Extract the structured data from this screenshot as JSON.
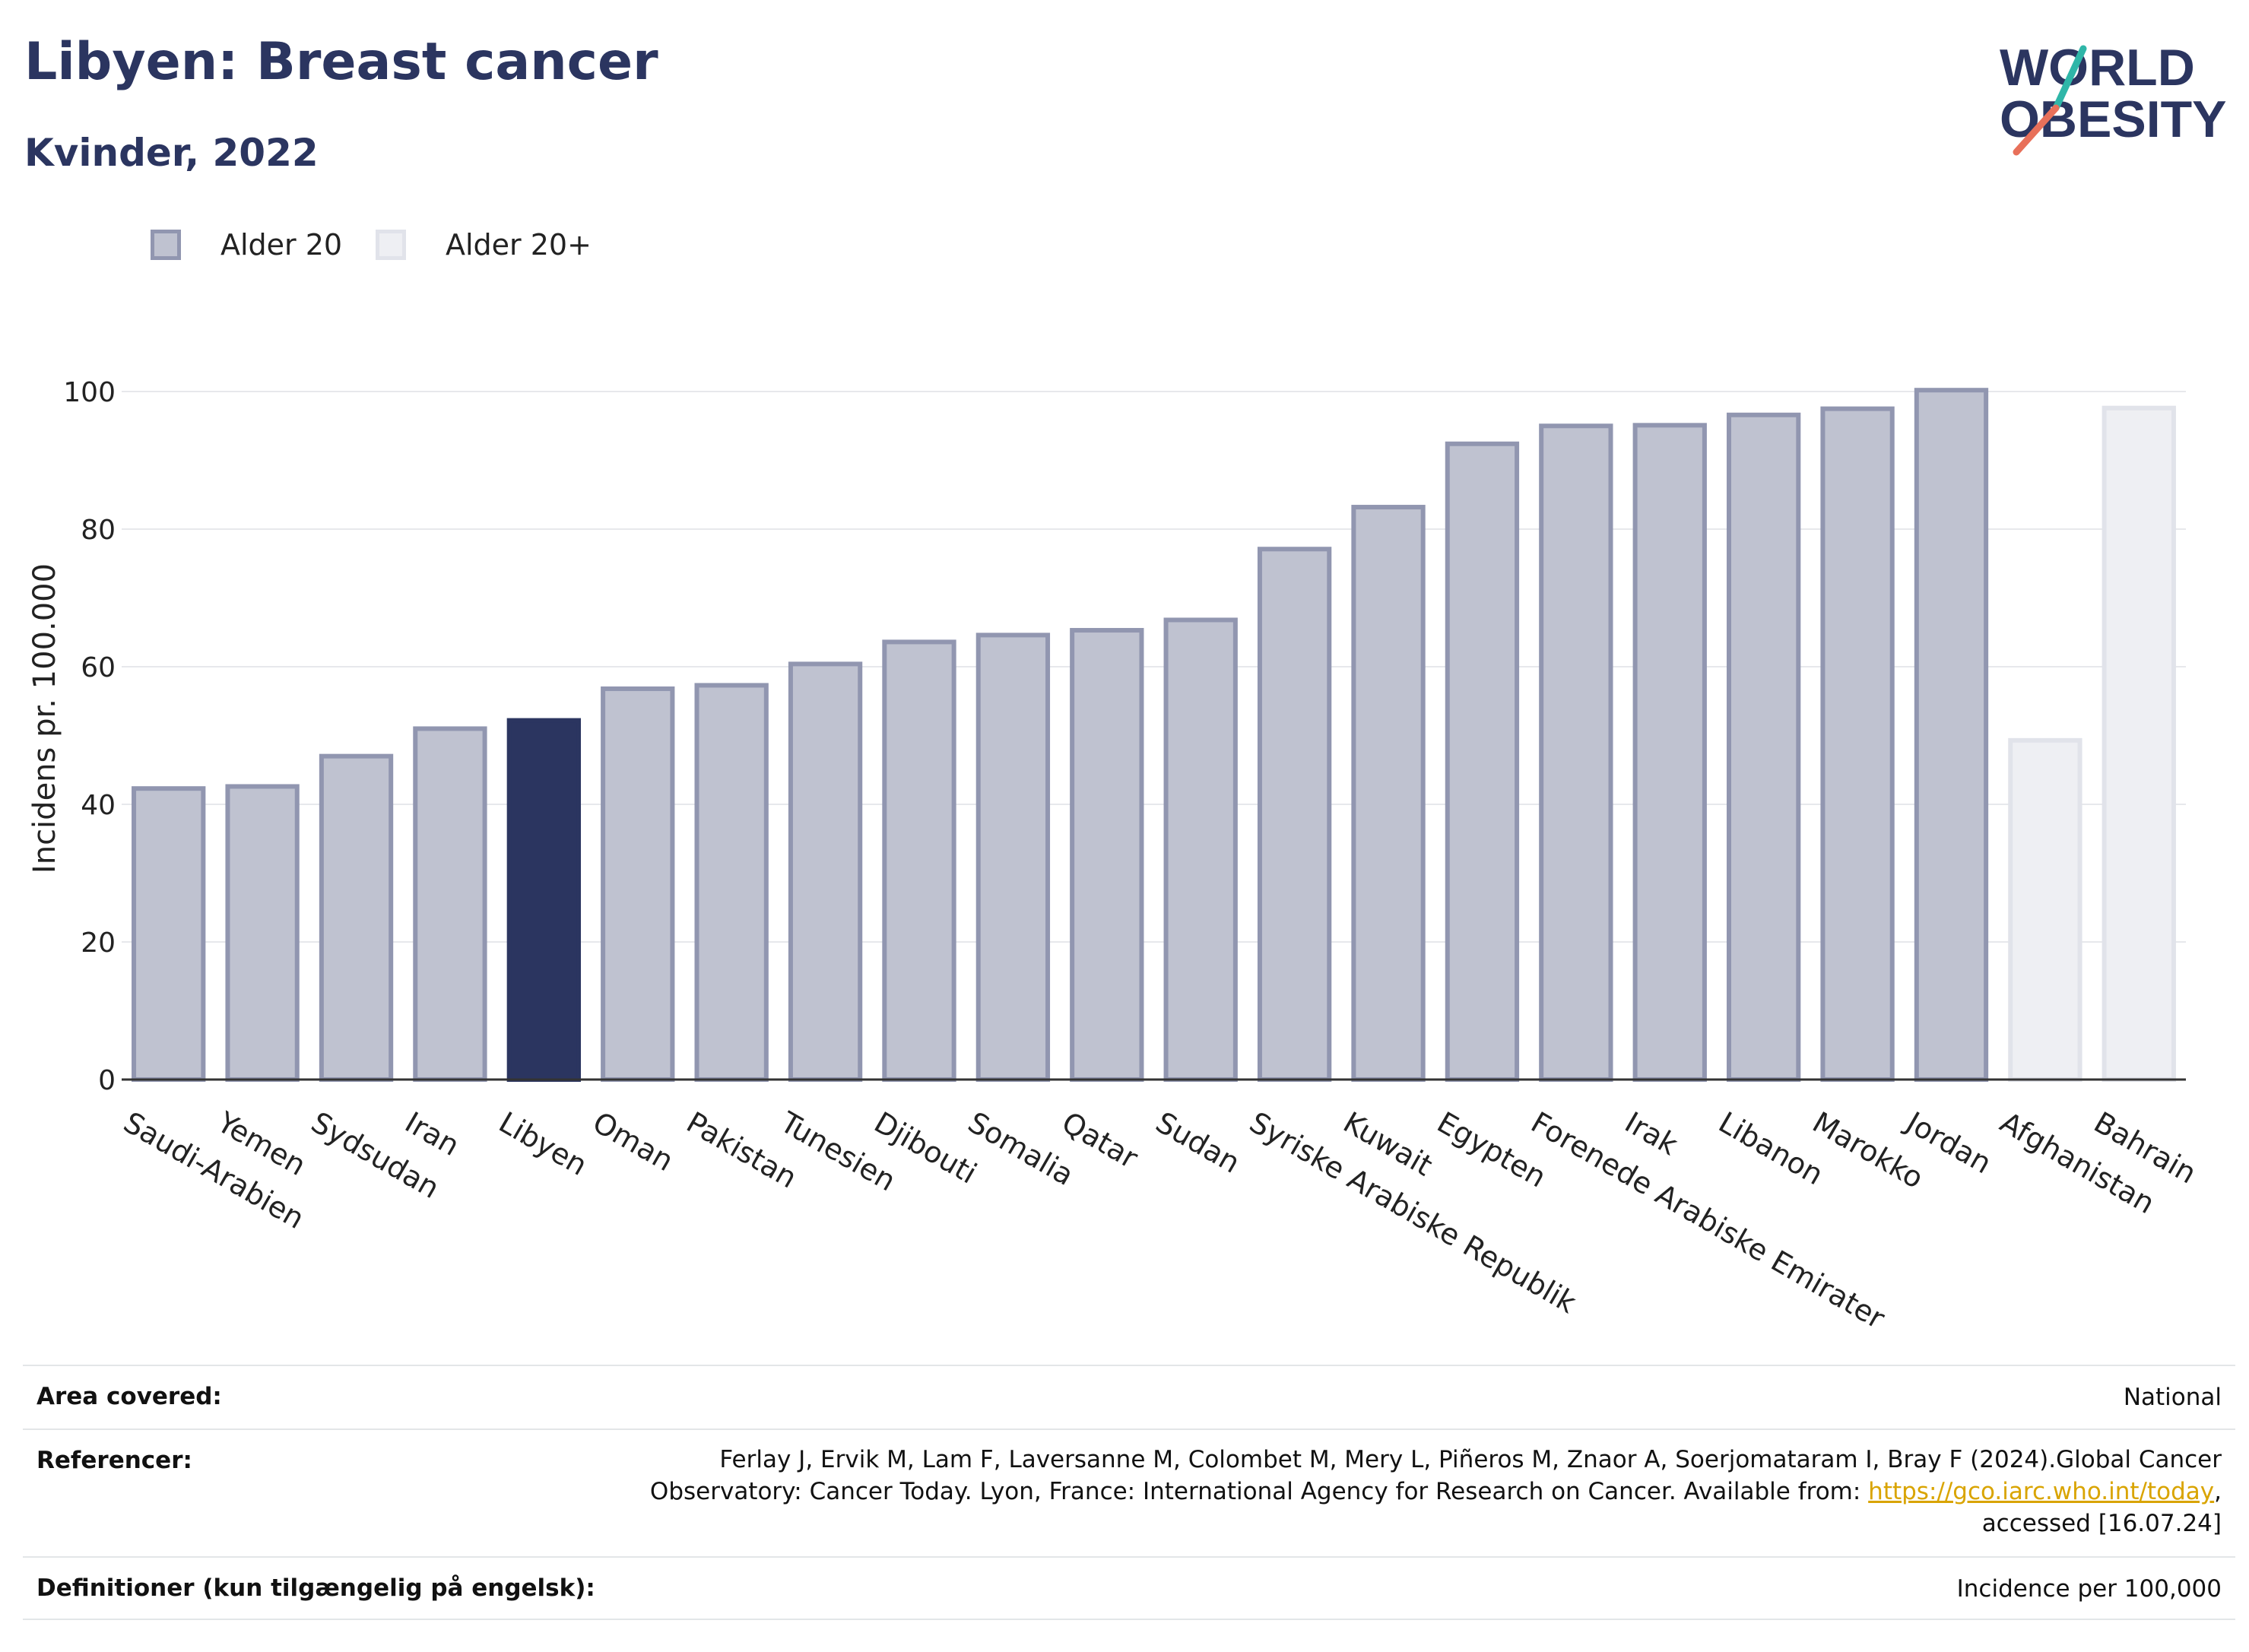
{
  "header": {
    "title": "Libyen: Breast cancer",
    "subtitle": "Kvinder, 2022"
  },
  "logo": {
    "line1": "WORLD",
    "line2": "OBESITY",
    "icon": "world-obesity-logo"
  },
  "legend": [
    {
      "label": "Alder 20",
      "color": "#bfc2d0",
      "border": "#9196b0"
    },
    {
      "label": "Alder 20+",
      "color": "#eeeff3",
      "border": "#e1e3ea"
    }
  ],
  "colors": {
    "highlight": "#2b3560",
    "grid": "#e7e8ec",
    "axis": "#333333"
  },
  "chart_data": {
    "type": "bar",
    "ylabel": "Incidens pr. 100.000",
    "ylim": [
      0,
      100
    ],
    "yticks": [
      0,
      20,
      40,
      60,
      80,
      100
    ],
    "highlight": "Libyen",
    "categories": [
      "Saudi-Arabien",
      "Yemen",
      "Sydsudan",
      "Iran",
      "Libyen",
      "Oman",
      "Pakistan",
      "Tunesien",
      "Djibouti",
      "Somalia",
      "Qatar",
      "Sudan",
      "Syriske Arabiske Republik",
      "Kuwait",
      "Egypten",
      "Forenede Arabiske Emirater",
      "Irak",
      "Libanon",
      "Marokko",
      "Jordan",
      "Afghanistan",
      "Bahrain"
    ],
    "values": [
      42.3,
      42.6,
      47.0,
      51.0,
      52.2,
      56.8,
      57.3,
      60.4,
      63.6,
      64.6,
      65.3,
      66.8,
      77.1,
      83.2,
      92.4,
      95.0,
      95.1,
      96.6,
      97.5,
      100.2,
      49.3,
      97.6
    ],
    "series_of_bar": [
      "Alder 20",
      "Alder 20",
      "Alder 20",
      "Alder 20",
      "Alder 20",
      "Alder 20",
      "Alder 20",
      "Alder 20",
      "Alder 20",
      "Alder 20",
      "Alder 20",
      "Alder 20",
      "Alder 20",
      "Alder 20",
      "Alder 20",
      "Alder 20",
      "Alder 20",
      "Alder 20",
      "Alder 20",
      "Alder 20",
      "Alder 20+",
      "Alder 20+"
    ],
    "grid": true,
    "legend_position": "top-left"
  },
  "footer": {
    "area_label": "Area covered:",
    "area_value": "National",
    "ref_label": "Referencer:",
    "ref_line1": "Ferlay J, Ervik M, Lam F, Laversanne M, Colombet M, Mery L, Piñeros M, Znaor A, Soerjomataram I, Bray F (2024).Global Cancer",
    "ref_line2_prefix": "Observatory: Cancer Today. Lyon, France: International Agency for Research on Cancer. Available from: ",
    "ref_link": "https://gco.iarc.who.int/today",
    "ref_line2_suffix": ",",
    "ref_line3": "accessed [16.07.24]",
    "def_label": "Definitioner (kun tilgængelig på engelsk):",
    "def_value": "Incidence per 100,000"
  }
}
